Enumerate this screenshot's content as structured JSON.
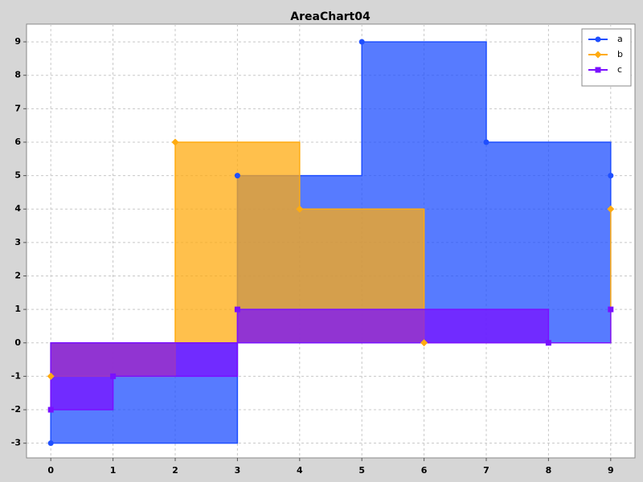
{
  "chart_data": {
    "type": "step-area",
    "title": "AreaChart04",
    "series": [
      {
        "name": "a",
        "color": "#1f4fff",
        "marker": "circle",
        "x": [
          0,
          3,
          5,
          7,
          9
        ],
        "values": [
          -3,
          5,
          9,
          6,
          5
        ]
      },
      {
        "name": "b",
        "color": "#ffab10",
        "marker": "diamond",
        "x": [
          0,
          2,
          4,
          6,
          9
        ],
        "values": [
          -1,
          6,
          4,
          0,
          4
        ]
      },
      {
        "name": "c",
        "color": "#7a10ff",
        "marker": "square",
        "x": [
          0,
          1,
          3,
          8,
          9
        ],
        "values": [
          -2,
          -1,
          1,
          0,
          1
        ]
      }
    ],
    "xlim": [
      -0.39,
      9.39
    ],
    "ylim": [
      -3.44,
      9.53
    ],
    "xticks": [
      0,
      1,
      2,
      3,
      4,
      5,
      6,
      7,
      8,
      9
    ],
    "yticks": [
      -3,
      -2,
      -1,
      0,
      1,
      2,
      3,
      4,
      5,
      6,
      7,
      8,
      9
    ],
    "grid": true,
    "legend": "top-right"
  }
}
